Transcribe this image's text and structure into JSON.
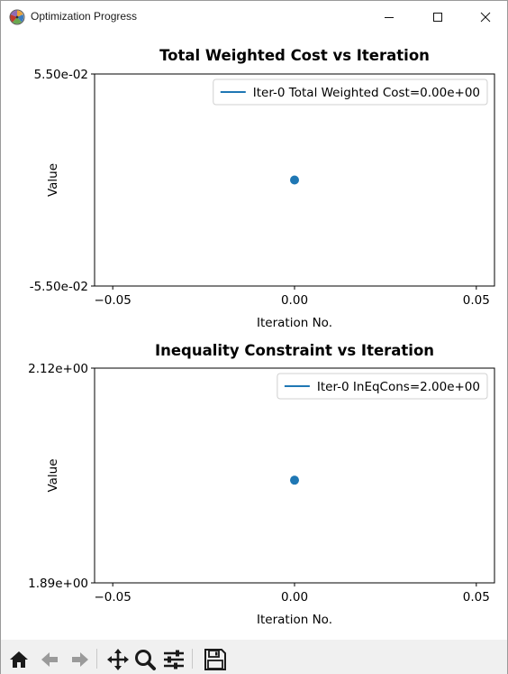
{
  "window": {
    "title": "Optimization Progress",
    "icons": {
      "app": "matplotlib-icon",
      "minimize": "minimize-icon",
      "maximize": "maximize-icon",
      "close": "close-icon"
    }
  },
  "toolbar": {
    "items": [
      {
        "name": "home-button",
        "icon": "home-icon"
      },
      {
        "name": "back-button",
        "icon": "arrow-left-icon"
      },
      {
        "name": "forward-button",
        "icon": "arrow-right-icon"
      },
      {
        "name": "pan-button",
        "icon": "move-icon"
      },
      {
        "name": "zoom-button",
        "icon": "zoom-icon"
      },
      {
        "name": "configure-subplots-button",
        "icon": "sliders-icon"
      },
      {
        "name": "save-button",
        "icon": "save-icon"
      }
    ]
  },
  "chart_data": [
    {
      "type": "scatter",
      "title": "Total Weighted Cost vs Iteration",
      "xlabel": "Iteration No.",
      "ylabel": "Value",
      "xlim": [
        -0.055,
        0.055
      ],
      "ylim": [
        -0.055,
        0.055
      ],
      "xticks": [
        "−0.05",
        "0.00",
        "0.05"
      ],
      "xtick_values": [
        -0.05,
        0.0,
        0.05
      ],
      "yticks": [
        "5.50e-02",
        "-5.50e-02"
      ],
      "ytick_values": [
        0.055,
        -0.055
      ],
      "legend": {
        "placement": "top-right",
        "entries": [
          "Iter-0 Total Weighted Cost=0.00e+00"
        ]
      },
      "series": [
        {
          "name": "Iter-0 Total Weighted Cost=0.00e+00",
          "color": "#1f77b4",
          "x": [
            0
          ],
          "y": [
            0.0
          ]
        }
      ],
      "grid": false
    },
    {
      "type": "scatter",
      "title": "Inequality Constraint vs Iteration",
      "xlabel": "Iteration No.",
      "ylabel": "Value",
      "xlim": [
        -0.055,
        0.055
      ],
      "ylim": [
        1.89,
        2.12
      ],
      "xticks": [
        "−0.05",
        "0.00",
        "0.05"
      ],
      "xtick_values": [
        -0.05,
        0.0,
        0.05
      ],
      "yticks": [
        "2.12e+00",
        "1.89e+00"
      ],
      "ytick_values": [
        2.12,
        1.89
      ],
      "legend": {
        "placement": "top-right",
        "entries": [
          "Iter-0 InEqCons=2.00e+00"
        ]
      },
      "series": [
        {
          "name": "Iter-0 InEqCons=2.00e+00",
          "color": "#1f77b4",
          "x": [
            0
          ],
          "y": [
            2.0
          ]
        }
      ],
      "grid": false
    }
  ]
}
